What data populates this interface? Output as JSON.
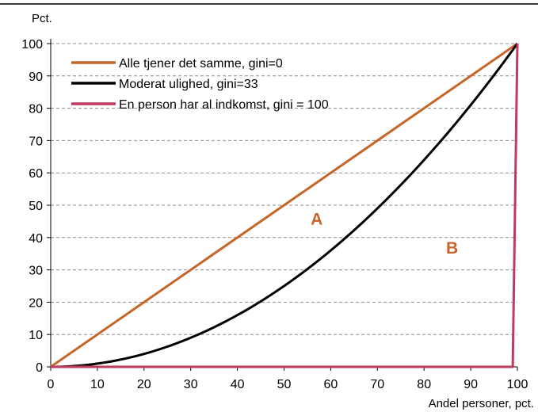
{
  "chart_data": {
    "type": "line",
    "ylabel": "Pct.",
    "xlabel": "Andel personer, pct.",
    "xlim": [
      0,
      100
    ],
    "ylim": [
      0,
      100
    ],
    "xticks": [
      0,
      10,
      20,
      30,
      40,
      50,
      60,
      70,
      80,
      90,
      100
    ],
    "yticks": [
      0,
      10,
      20,
      30,
      40,
      50,
      60,
      70,
      80,
      90,
      100
    ],
    "grid": "horizontal dashed",
    "legend_position": "top-left",
    "series": [
      {
        "name": "Alle tjener det samme, gini=0",
        "color": "#c5652a",
        "x": [
          0,
          100
        ],
        "y": [
          0,
          100
        ]
      },
      {
        "name": "Moderat ulighed, gini=33",
        "color": "#000000",
        "x": [
          0,
          10,
          20,
          30,
          40,
          50,
          60,
          70,
          80,
          90,
          100
        ],
        "y": [
          0,
          1,
          4,
          9,
          16,
          25,
          36,
          49,
          64,
          81,
          100
        ]
      },
      {
        "name": "En person har al indkomst, gini = 100",
        "color": "#c0395e",
        "x": [
          0,
          99,
          100
        ],
        "y": [
          0,
          0,
          100
        ]
      }
    ],
    "annotations": [
      {
        "text": "A",
        "x": 57,
        "y": 44,
        "color": "#c5652a"
      },
      {
        "text": "B",
        "x": 86,
        "y": 35,
        "color": "#c5652a"
      }
    ]
  }
}
